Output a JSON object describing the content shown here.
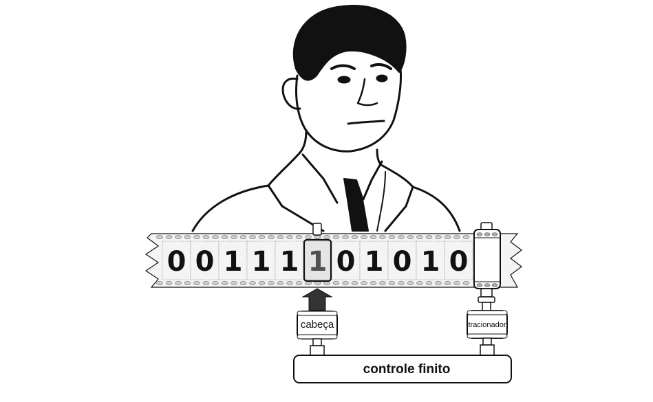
{
  "tape": {
    "digits": [
      "0",
      "0",
      "1",
      "1",
      "1",
      "1",
      "0",
      "1",
      "0",
      "1",
      "0",
      ""
    ],
    "head_cell_index": 5
  },
  "labels": {
    "head": "cabeça",
    "puller": "tracionador",
    "controller": "controle finito"
  },
  "colors": {
    "ink": "#111111",
    "tape_fill": "#f4f4f4",
    "hole_fill": "#cfcfcf",
    "arrow": "#333333"
  },
  "icons": {
    "portrait": "man-in-suit-portrait",
    "arrow": "arrow-up-icon"
  }
}
